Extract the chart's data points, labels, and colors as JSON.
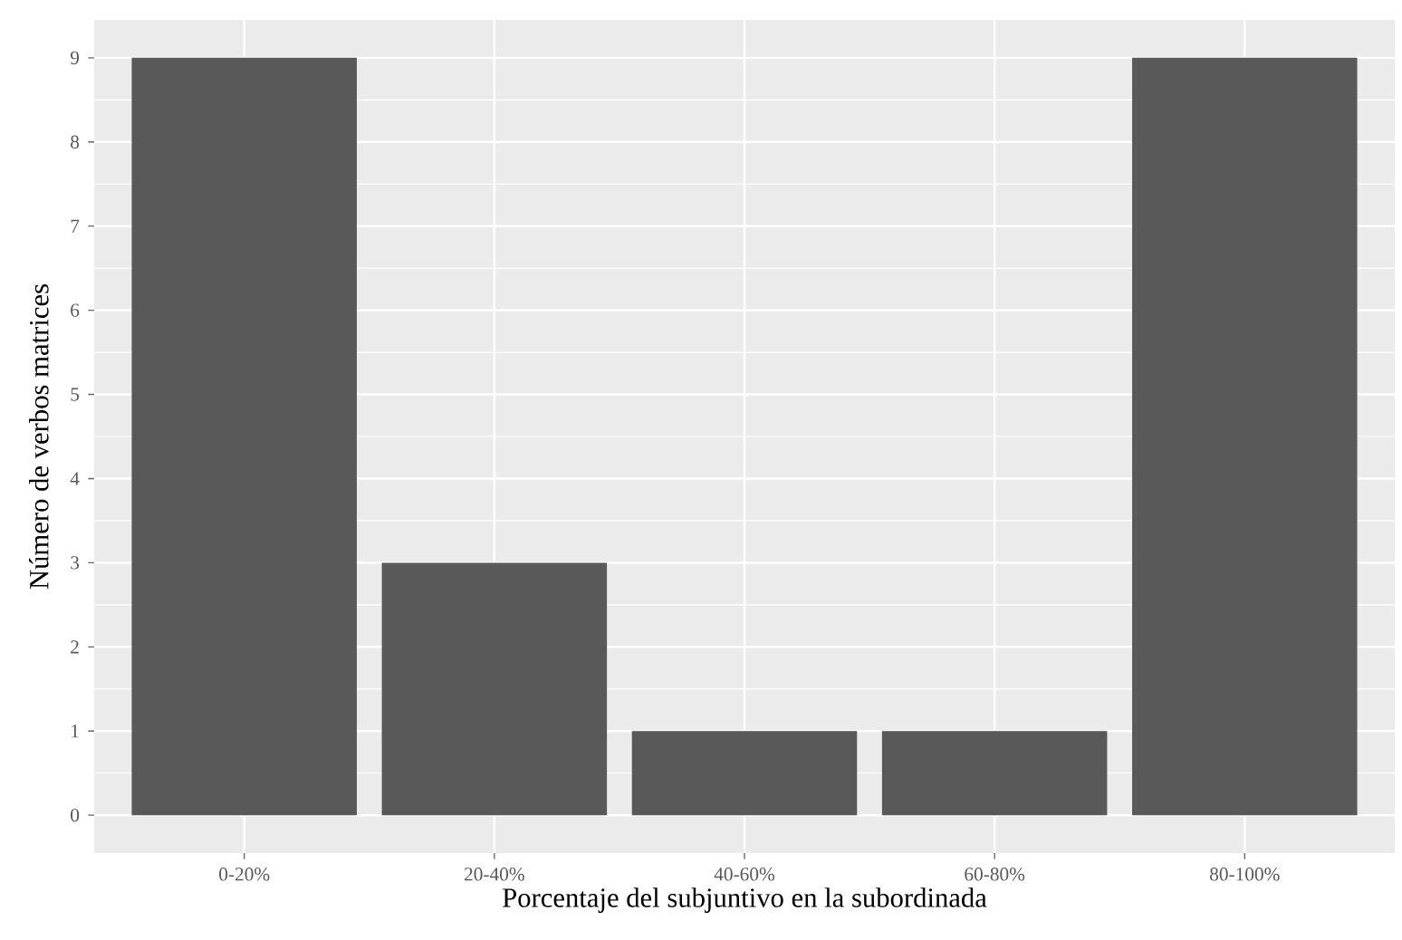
{
  "chart_data": {
    "type": "bar",
    "xlabel": "Porcentaje del subjuntivo en la subordinada",
    "ylabel": "Número de verbos matrices",
    "categories": [
      "0-20%",
      "20-40%",
      "40-60%",
      "60-80%",
      "80-100%"
    ],
    "values": [
      9,
      3,
      1,
      1,
      9
    ],
    "color": "#595959",
    "ylim": [
      -0.45,
      9.45
    ],
    "yticks": [
      0,
      1,
      2,
      3,
      4,
      5,
      6,
      7,
      8,
      9
    ],
    "grid": true
  }
}
